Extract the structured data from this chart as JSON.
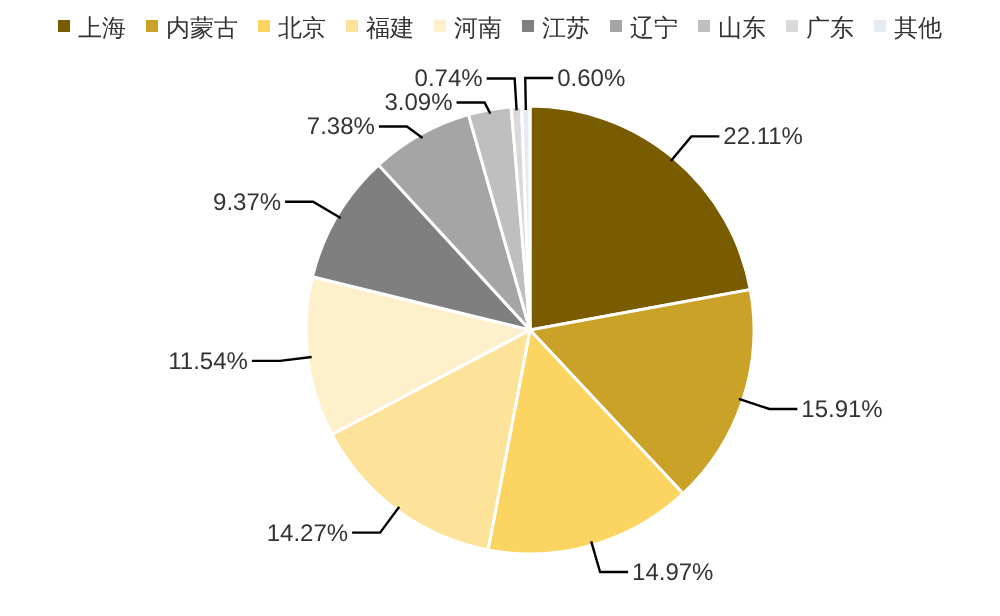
{
  "chart_data": {
    "type": "pie",
    "categories": [
      "上海",
      "内蒙古",
      "北京",
      "福建",
      "河南",
      "江苏",
      "辽宁",
      "山东",
      "广东",
      "其他"
    ],
    "values": [
      22.11,
      15.91,
      14.97,
      14.27,
      11.54,
      9.37,
      7.38,
      3.09,
      0.74,
      0.6
    ],
    "value_labels": [
      "22.11%",
      "15.91%",
      "14.97%",
      "14.27%",
      "11.54%",
      "9.37%",
      "7.38%",
      "3.09%",
      "0.74%",
      "0.60%"
    ],
    "colors": [
      "#7a5c00",
      "#c9a227",
      "#fcd462",
      "#fde39a",
      "#fff0cc",
      "#7f7f7f",
      "#a5a5a5",
      "#bfbfbf",
      "#d9d9d9",
      "#e6eaf2"
    ],
    "legend": "top"
  }
}
